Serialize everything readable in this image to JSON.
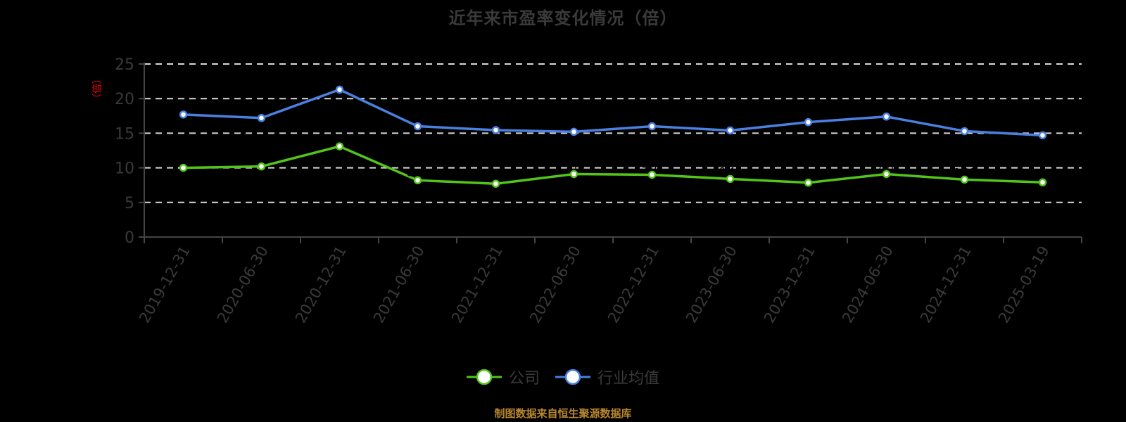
{
  "title": "近年来市盈率变化情况（倍）",
  "y_axis_label": "（倍）",
  "legend": [
    {
      "label": "公司",
      "color": "#52c41a"
    },
    {
      "label": "行业均值",
      "color": "#4a80e0"
    }
  ],
  "footer": "制图数据来自恒生聚源数据库",
  "colors": {
    "background": "#000000",
    "axis": "#444444",
    "grid": "#d9d9d9",
    "tick_text": "#3a3a3a",
    "y_label": "#ff0000",
    "company": "#52c41a",
    "industry": "#4a80e0",
    "footer": "#b8862e"
  },
  "chart_data": {
    "type": "line",
    "title": "近年来市盈率变化情况（倍）",
    "xlabel": "",
    "ylabel": "（倍）",
    "ylim": [
      0,
      25
    ],
    "yticks": [
      0,
      5,
      10,
      15,
      20,
      25
    ],
    "grid": true,
    "legend_position": "bottom",
    "categories": [
      "2019-12-31",
      "2020-06-30",
      "2020-12-31",
      "2021-06-30",
      "2021-12-31",
      "2022-06-30",
      "2022-12-31",
      "2023-06-30",
      "2023-12-31",
      "2024-06-30",
      "2024-12-31",
      "2025-03-19"
    ],
    "series": [
      {
        "name": "公司",
        "color": "#52c41a",
        "values": [
          10.0,
          10.2,
          13.1,
          8.2,
          7.7,
          9.1,
          9.0,
          8.4,
          7.85,
          9.1,
          8.3,
          7.9
        ]
      },
      {
        "name": "行业均值",
        "color": "#4a80e0",
        "values": [
          17.7,
          17.2,
          21.3,
          16.0,
          15.45,
          15.2,
          16.0,
          15.4,
          16.6,
          17.4,
          15.3,
          14.7
        ]
      }
    ]
  }
}
